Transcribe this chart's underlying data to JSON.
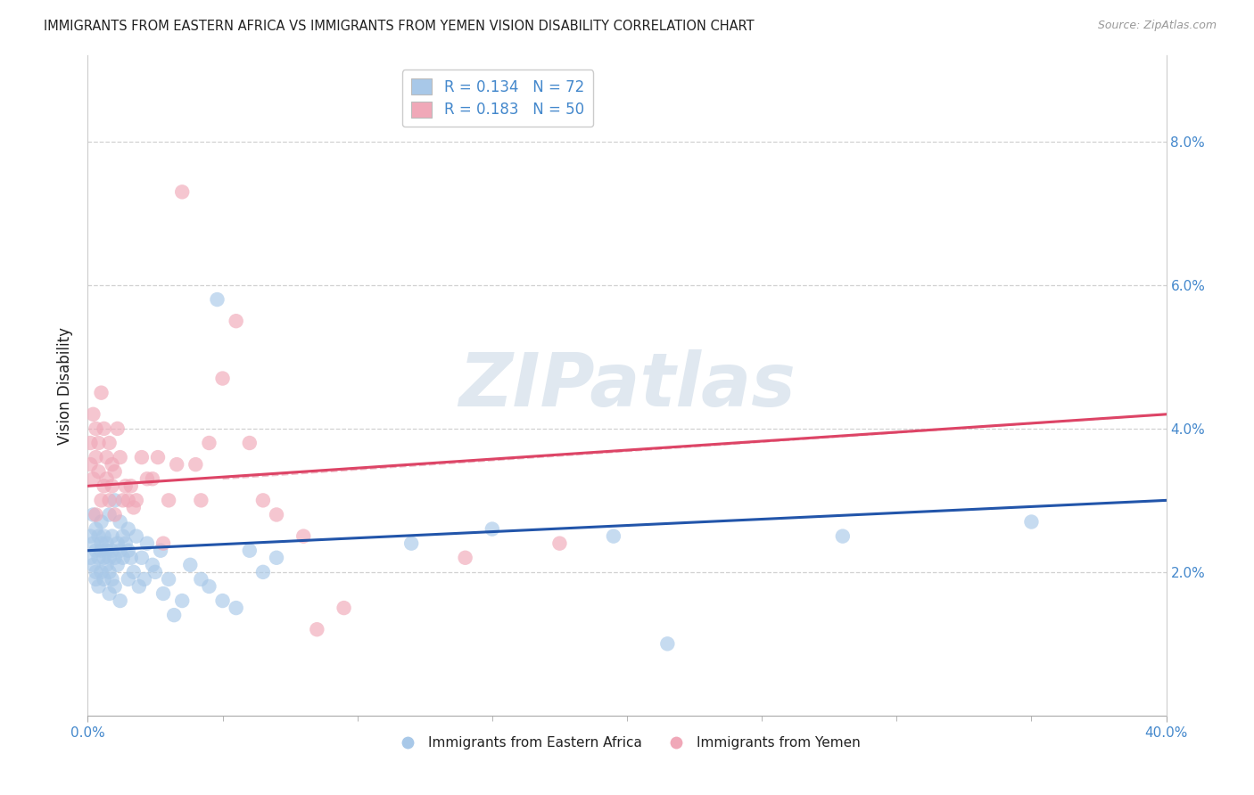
{
  "title": "IMMIGRANTS FROM EASTERN AFRICA VS IMMIGRANTS FROM YEMEN VISION DISABILITY CORRELATION CHART",
  "source": "Source: ZipAtlas.com",
  "ylabel": "Vision Disability",
  "legend_label1": "R = 0.134   N = 72",
  "legend_label2": "R = 0.183   N = 50",
  "legend_xlabel1": "Immigrants from Eastern Africa",
  "legend_xlabel2": "Immigrants from Yemen",
  "color_blue": "#a8c8e8",
  "color_pink": "#f0a8b8",
  "line_blue": "#2255aa",
  "line_pink": "#dd4466",
  "line_pink_dash_color": "#e8a0b0",
  "background": "#ffffff",
  "watermark": "ZIPatlas",
  "xlim": [
    0.0,
    0.4
  ],
  "ylim": [
    0.0,
    0.092
  ],
  "ytick_vals": [
    0.02,
    0.04,
    0.06,
    0.08
  ],
  "ytick_labels": [
    "2.0%",
    "4.0%",
    "6.0%",
    "8.0%"
  ],
  "tick_color": "#4488cc",
  "text_color": "#222222",
  "blue_line_y0": 0.023,
  "blue_line_y1": 0.03,
  "pink_line_y0": 0.032,
  "pink_line_y1": 0.042,
  "blue_x": [
    0.001,
    0.001,
    0.002,
    0.002,
    0.002,
    0.003,
    0.003,
    0.003,
    0.003,
    0.004,
    0.004,
    0.004,
    0.005,
    0.005,
    0.005,
    0.005,
    0.006,
    0.006,
    0.006,
    0.007,
    0.007,
    0.007,
    0.008,
    0.008,
    0.008,
    0.009,
    0.009,
    0.009,
    0.01,
    0.01,
    0.011,
    0.011,
    0.012,
    0.012,
    0.013,
    0.013,
    0.014,
    0.015,
    0.015,
    0.016,
    0.017,
    0.018,
    0.019,
    0.02,
    0.021,
    0.022,
    0.024,
    0.025,
    0.027,
    0.028,
    0.03,
    0.032,
    0.035,
    0.038,
    0.042,
    0.045,
    0.05,
    0.055,
    0.06,
    0.065,
    0.048,
    0.07,
    0.12,
    0.15,
    0.195,
    0.215,
    0.28,
    0.35,
    0.008,
    0.01,
    0.012,
    0.015
  ],
  "blue_y": [
    0.022,
    0.025,
    0.021,
    0.024,
    0.028,
    0.02,
    0.023,
    0.026,
    0.019,
    0.022,
    0.025,
    0.018,
    0.023,
    0.02,
    0.027,
    0.024,
    0.022,
    0.025,
    0.019,
    0.024,
    0.021,
    0.023,
    0.02,
    0.028,
    0.022,
    0.025,
    0.023,
    0.019,
    0.022,
    0.03,
    0.021,
    0.024,
    0.023,
    0.027,
    0.022,
    0.025,
    0.024,
    0.023,
    0.026,
    0.022,
    0.02,
    0.025,
    0.018,
    0.022,
    0.019,
    0.024,
    0.021,
    0.02,
    0.023,
    0.017,
    0.019,
    0.014,
    0.016,
    0.021,
    0.019,
    0.018,
    0.016,
    0.015,
    0.023,
    0.02,
    0.058,
    0.022,
    0.024,
    0.026,
    0.025,
    0.01,
    0.025,
    0.027,
    0.017,
    0.018,
    0.016,
    0.019
  ],
  "pink_x": [
    0.001,
    0.001,
    0.002,
    0.002,
    0.003,
    0.003,
    0.003,
    0.004,
    0.004,
    0.005,
    0.005,
    0.006,
    0.006,
    0.007,
    0.007,
    0.008,
    0.008,
    0.009,
    0.009,
    0.01,
    0.01,
    0.011,
    0.012,
    0.013,
    0.014,
    0.015,
    0.016,
    0.017,
    0.018,
    0.02,
    0.022,
    0.024,
    0.026,
    0.028,
    0.03,
    0.033,
    0.035,
    0.04,
    0.042,
    0.045,
    0.05,
    0.055,
    0.06,
    0.065,
    0.07,
    0.08,
    0.085,
    0.095,
    0.14,
    0.175
  ],
  "pink_y": [
    0.038,
    0.035,
    0.042,
    0.033,
    0.036,
    0.04,
    0.028,
    0.034,
    0.038,
    0.03,
    0.045,
    0.032,
    0.04,
    0.033,
    0.036,
    0.03,
    0.038,
    0.035,
    0.032,
    0.028,
    0.034,
    0.04,
    0.036,
    0.03,
    0.032,
    0.03,
    0.032,
    0.029,
    0.03,
    0.036,
    0.033,
    0.033,
    0.036,
    0.024,
    0.03,
    0.035,
    0.073,
    0.035,
    0.03,
    0.038,
    0.047,
    0.055,
    0.038,
    0.03,
    0.028,
    0.025,
    0.012,
    0.015,
    0.022,
    0.024
  ]
}
